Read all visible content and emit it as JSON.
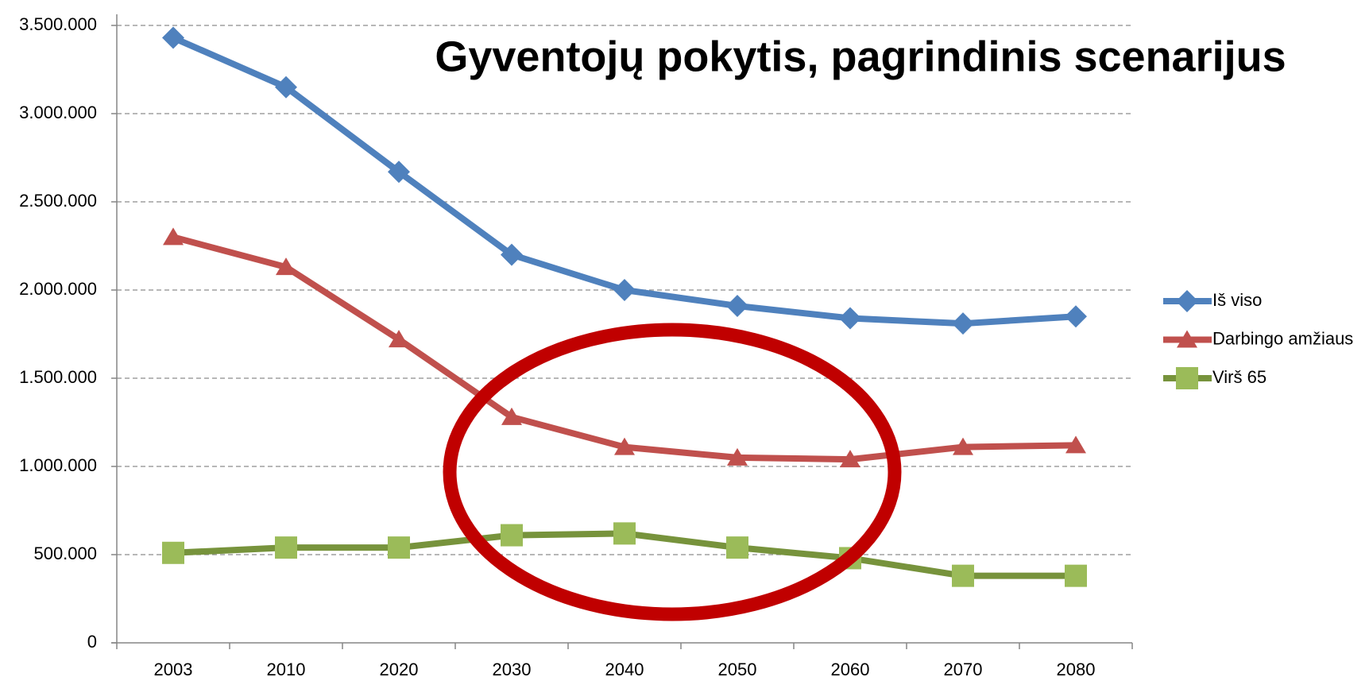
{
  "chart_data": {
    "type": "line",
    "title": "Gyventojų pokytis, pagrindinis scenarijus",
    "categories": [
      "2003",
      "2010",
      "2020",
      "2030",
      "2040",
      "2050",
      "2060",
      "2070",
      "2080"
    ],
    "series": [
      {
        "name": "Iš viso",
        "color": "#4f81bd",
        "marker": "diamond",
        "values": [
          3430000,
          3150000,
          2670000,
          2200000,
          2000000,
          1910000,
          1840000,
          1810000,
          1850000
        ]
      },
      {
        "name": "Darbingo amžiaus",
        "color": "#c0504d",
        "marker": "triangle",
        "values": [
          2300000,
          2130000,
          1720000,
          1280000,
          1110000,
          1050000,
          1040000,
          1110000,
          1120000
        ]
      },
      {
        "name": "Virš 65",
        "color": "#77933c",
        "marker_color": "#9bbb59",
        "marker": "square",
        "values": [
          510000,
          540000,
          540000,
          610000,
          620000,
          540000,
          480000,
          380000,
          380000
        ]
      }
    ],
    "ylim": [
      0,
      3500000
    ],
    "yticks": [
      0,
      {
        "value": 500000,
        "label": "500.000"
      },
      {
        "value": 1000000,
        "label": "1.000.000"
      },
      {
        "value": 1500000,
        "label": "1.500.000"
      },
      {
        "value": 2000000,
        "label": "2.000.000"
      },
      {
        "value": 2500000,
        "label": "2.500.000"
      },
      {
        "value": 3000000,
        "label": "3.000.000"
      },
      {
        "value": 3500000,
        "label": "3.500.000"
      }
    ],
    "grid": true,
    "legend": "right"
  }
}
